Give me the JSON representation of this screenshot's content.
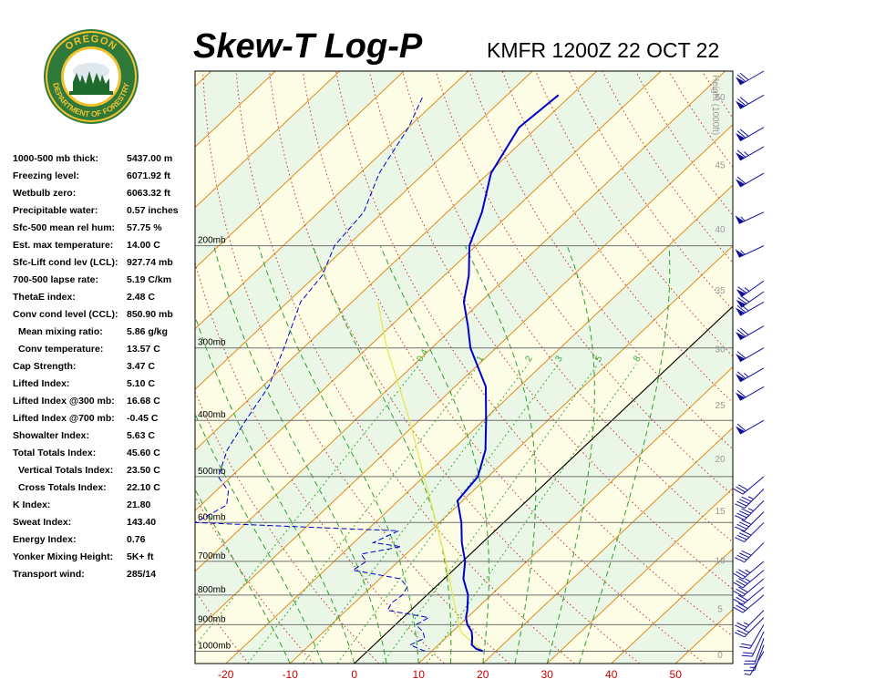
{
  "header": {
    "title": "Skew-T Log-P",
    "station_time": "KMFR 1200Z 22 OCT 22"
  },
  "logo": {
    "top_text": "OREGON",
    "bottom_text": "DEPARTMENT OF FORESTRY",
    "colors": {
      "ring": "#2f7a3a",
      "gold": "#f2c230",
      "tree": "#1f6b2d"
    }
  },
  "indices": [
    {
      "label": "1000-500 mb thick:",
      "value": "5437.00 m",
      "sub": false
    },
    {
      "label": "Freezing level:",
      "value": "6071.92 ft",
      "sub": false
    },
    {
      "label": "Wetbulb zero:",
      "value": "6063.32 ft",
      "sub": false
    },
    {
      "label": "Precipitable water:",
      "value": "0.57 inches",
      "sub": false
    },
    {
      "label": "Sfc-500 mean rel hum:",
      "value": "57.75 %",
      "sub": false
    },
    {
      "label": "Est. max temperature:",
      "value": "14.00 C",
      "sub": false
    },
    {
      "label": "Sfc-Lift cond lev (LCL):",
      "value": "927.74 mb",
      "sub": false
    },
    {
      "label": "700-500 lapse rate:",
      "value": "5.19 C/km",
      "sub": false
    },
    {
      "label": "ThetaE index:",
      "value": "2.48 C",
      "sub": false
    },
    {
      "label": "Conv cond level (CCL):",
      "value": "850.90 mb",
      "sub": false
    },
    {
      "label": "Mean mixing ratio:",
      "value": "5.86 g/kg",
      "sub": true
    },
    {
      "label": "Conv temperature:",
      "value": "13.57 C",
      "sub": true
    },
    {
      "label": "Cap Strength:",
      "value": "3.47 C",
      "sub": false
    },
    {
      "label": "Lifted Index:",
      "value": "5.10 C",
      "sub": false
    },
    {
      "label": "Lifted Index @300 mb:",
      "value": "16.68 C",
      "sub": false
    },
    {
      "label": "Lifted Index @700 mb:",
      "value": "-0.45 C",
      "sub": false
    },
    {
      "label": "Showalter Index:",
      "value": "5.63 C",
      "sub": false
    },
    {
      "label": "Total Totals Index:",
      "value": "45.60 C",
      "sub": false
    },
    {
      "label": "Vertical Totals Index:",
      "value": "23.50 C",
      "sub": true
    },
    {
      "label": "Cross Totals Index:",
      "value": "22.10 C",
      "sub": true
    },
    {
      "label": "K Index:",
      "value": "21.80",
      "sub": false
    },
    {
      "label": "Sweat Index:",
      "value": "143.40",
      "sub": false
    },
    {
      "label": "Energy Index:",
      "value": "0.76",
      "sub": false
    },
    {
      "label": "Yonker Mixing Height:",
      "value": "5K+ ft",
      "sub": false
    },
    {
      "label": "Transport wind:",
      "value": "285/14",
      "sub": false
    }
  ],
  "chart_data": {
    "type": "line",
    "title": "Skew-T Log-P",
    "height_axis_label": "Height (1000ft)",
    "pressure_labels": [
      "200mb",
      "300mb",
      "400mb",
      "500mb",
      "600mb",
      "700mb",
      "800mb",
      "900mb",
      "1000mb"
    ],
    "pressure_levels": [
      200,
      300,
      400,
      500,
      600,
      700,
      800,
      900,
      1000
    ],
    "x_ticks": [
      -20,
      -10,
      0,
      10,
      20,
      30,
      40,
      50
    ],
    "height_ticks": [
      0,
      5,
      10,
      15,
      20,
      25,
      30,
      35,
      40,
      45,
      50
    ],
    "height_tick_labels": [
      "0",
      "5",
      "10",
      "15",
      "20",
      "25",
      "30",
      "35",
      "40",
      "45",
      "50"
    ],
    "mixing_ratio_labels": [
      "0.4",
      "1",
      "2",
      "3",
      "5",
      "8"
    ],
    "mixing_ratio_values": [
      0.4,
      1,
      2,
      3,
      5,
      8
    ],
    "top_pressure": 100,
    "bottom_pressure": 1050,
    "colors": {
      "temperature": "#0000cc",
      "dewpoint": "#0000cc",
      "parcel": "#e6e64c",
      "isotherm": "#e08a1e",
      "dry_adiabat": "#cc3333",
      "moist_adiabat": "#2e9e2e",
      "mixing_ratio": "#3aaa3a",
      "bg_band_a": "#fdfde6",
      "bg_band_b": "#eaf7e6",
      "axis_label": "#cc0000"
    },
    "series": [
      {
        "name": "temperature",
        "points": [
          [
            1000,
            18
          ],
          [
            990,
            16.5
          ],
          [
            975,
            15.2
          ],
          [
            950,
            14.2
          ],
          [
            925,
            13.0
          ],
          [
            900,
            11.2
          ],
          [
            875,
            9.8
          ],
          [
            850,
            8.8
          ],
          [
            800,
            6.4
          ],
          [
            750,
            3.0
          ],
          [
            700,
            0.4
          ],
          [
            650,
            -3.2
          ],
          [
            600,
            -6.6
          ],
          [
            550,
            -10.8
          ],
          [
            500,
            -11.6
          ],
          [
            450,
            -14.8
          ],
          [
            400,
            -19.6
          ],
          [
            350,
            -25.2
          ],
          [
            300,
            -34.0
          ],
          [
            275,
            -38.0
          ],
          [
            250,
            -42.6
          ],
          [
            225,
            -46.2
          ],
          [
            200,
            -51.0
          ],
          [
            175,
            -54.6
          ],
          [
            150,
            -59.6
          ],
          [
            125,
            -62.8
          ],
          [
            110,
            -62.0
          ]
        ]
      },
      {
        "name": "dewpoint",
        "points": [
          [
            1000,
            9.0
          ],
          [
            975,
            5.6
          ],
          [
            950,
            6.8
          ],
          [
            925,
            5.4
          ],
          [
            900,
            3.2
          ],
          [
            875,
            4.0
          ],
          [
            850,
            -3.6
          ],
          [
            825,
            -4.2
          ],
          [
            800,
            -3.8
          ],
          [
            775,
            -4.4
          ],
          [
            750,
            -6.8
          ],
          [
            725,
            -15.6
          ],
          [
            700,
            -15.0
          ],
          [
            680,
            -17.0
          ],
          [
            660,
            -12.0
          ],
          [
            650,
            -17.0
          ],
          [
            620,
            -15.0
          ],
          [
            600,
            -48.0
          ],
          [
            560,
            -46.0
          ],
          [
            530,
            -48.0
          ],
          [
            500,
            -52.0
          ],
          [
            450,
            -55.0
          ],
          [
            400,
            -57.0
          ],
          [
            350,
            -59.0
          ],
          [
            300,
            -63.0
          ],
          [
            250,
            -68.0
          ],
          [
            225,
            -69.0
          ],
          [
            200,
            -72.0
          ],
          [
            175,
            -73.0
          ],
          [
            150,
            -77.0
          ],
          [
            125,
            -80.0
          ],
          [
            110,
            -83.0
          ]
        ]
      },
      {
        "name": "parcel",
        "points": [
          [
            1000,
            18
          ],
          [
            950,
            13.5
          ],
          [
            928,
            11.5
          ],
          [
            850,
            7.0
          ],
          [
            800,
            4.0
          ],
          [
            700,
            -2.6
          ],
          [
            600,
            -10.5
          ],
          [
            500,
            -20.0
          ],
          [
            400,
            -31.5
          ],
          [
            300,
            -47.0
          ],
          [
            250,
            -56.0
          ]
        ]
      }
    ],
    "wind_barbs": [
      {
        "pressure": 1000,
        "dir": 210,
        "spd": 5
      },
      {
        "pressure": 975,
        "dir": 200,
        "spd": 15
      },
      {
        "pressure": 950,
        "dir": 200,
        "spd": 20
      },
      {
        "pressure": 925,
        "dir": 205,
        "spd": 20
      },
      {
        "pressure": 900,
        "dir": 210,
        "spd": 20
      },
      {
        "pressure": 875,
        "dir": 225,
        "spd": 25
      },
      {
        "pressure": 850,
        "dir": 225,
        "spd": 25
      },
      {
        "pressure": 800,
        "dir": 230,
        "spd": 30
      },
      {
        "pressure": 775,
        "dir": 230,
        "spd": 30
      },
      {
        "pressure": 750,
        "dir": 230,
        "spd": 30
      },
      {
        "pressure": 725,
        "dir": 230,
        "spd": 35
      },
      {
        "pressure": 700,
        "dir": 230,
        "spd": 35
      },
      {
        "pressure": 650,
        "dir": 225,
        "spd": 40
      },
      {
        "pressure": 600,
        "dir": 225,
        "spd": 40
      },
      {
        "pressure": 575,
        "dir": 225,
        "spd": 40
      },
      {
        "pressure": 550,
        "dir": 225,
        "spd": 45
      },
      {
        "pressure": 525,
        "dir": 225,
        "spd": 45
      },
      {
        "pressure": 500,
        "dir": 230,
        "spd": 30
      },
      {
        "pressure": 400,
        "dir": 240,
        "spd": 60
      },
      {
        "pressure": 350,
        "dir": 240,
        "spd": 60
      },
      {
        "pressure": 325,
        "dir": 240,
        "spd": 65
      },
      {
        "pressure": 300,
        "dir": 240,
        "spd": 60
      },
      {
        "pressure": 275,
        "dir": 240,
        "spd": 70
      },
      {
        "pressure": 250,
        "dir": 240,
        "spd": 70
      },
      {
        "pressure": 240,
        "dir": 235,
        "spd": 70
      },
      {
        "pressure": 230,
        "dir": 235,
        "spd": 65
      },
      {
        "pressure": 200,
        "dir": 245,
        "spd": 55
      },
      {
        "pressure": 175,
        "dir": 245,
        "spd": 55
      },
      {
        "pressure": 150,
        "dir": 240,
        "spd": 60
      },
      {
        "pressure": 135,
        "dir": 240,
        "spd": 65
      },
      {
        "pressure": 125,
        "dir": 240,
        "spd": 70
      },
      {
        "pressure": 110,
        "dir": 240,
        "spd": 70
      },
      {
        "pressure": 100,
        "dir": 240,
        "spd": 70
      }
    ]
  }
}
